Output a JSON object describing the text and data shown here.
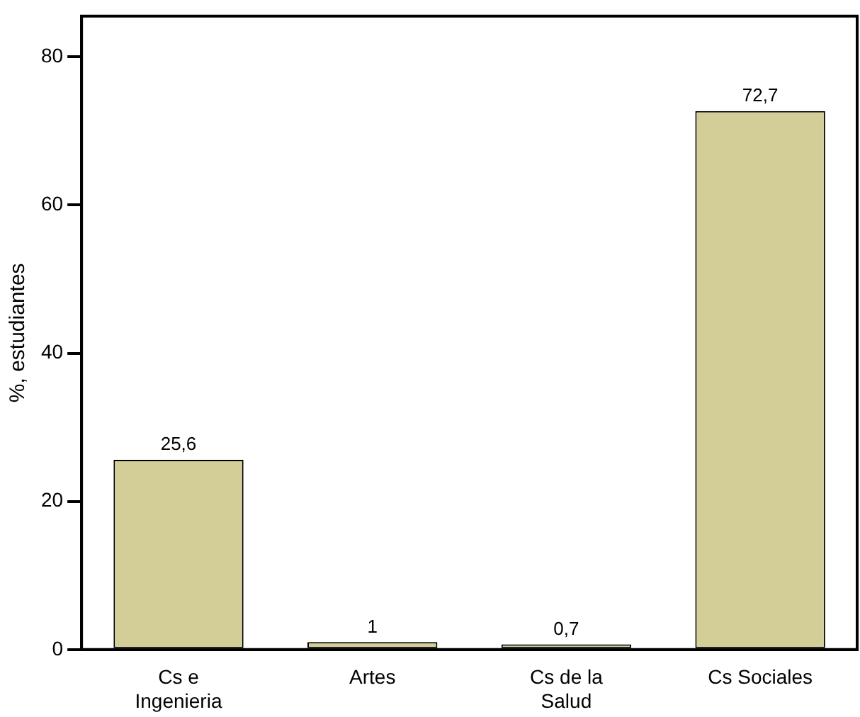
{
  "chart_data": {
    "type": "bar",
    "ylabel": "%, estudiantes",
    "categories": [
      "Cs e Ingenieria",
      "Artes",
      "Cs de la Salud",
      "Cs Sociales"
    ],
    "values": [
      25.6,
      1,
      0.7,
      72.7
    ],
    "color": "#d3ce98",
    "value_labels": [
      "25,6",
      "1",
      "0,7",
      "72,7"
    ],
    "ylim": [
      0,
      85.5
    ],
    "yticks": [
      0,
      20,
      40,
      60,
      80
    ],
    "grid": false,
    "legend": false
  }
}
